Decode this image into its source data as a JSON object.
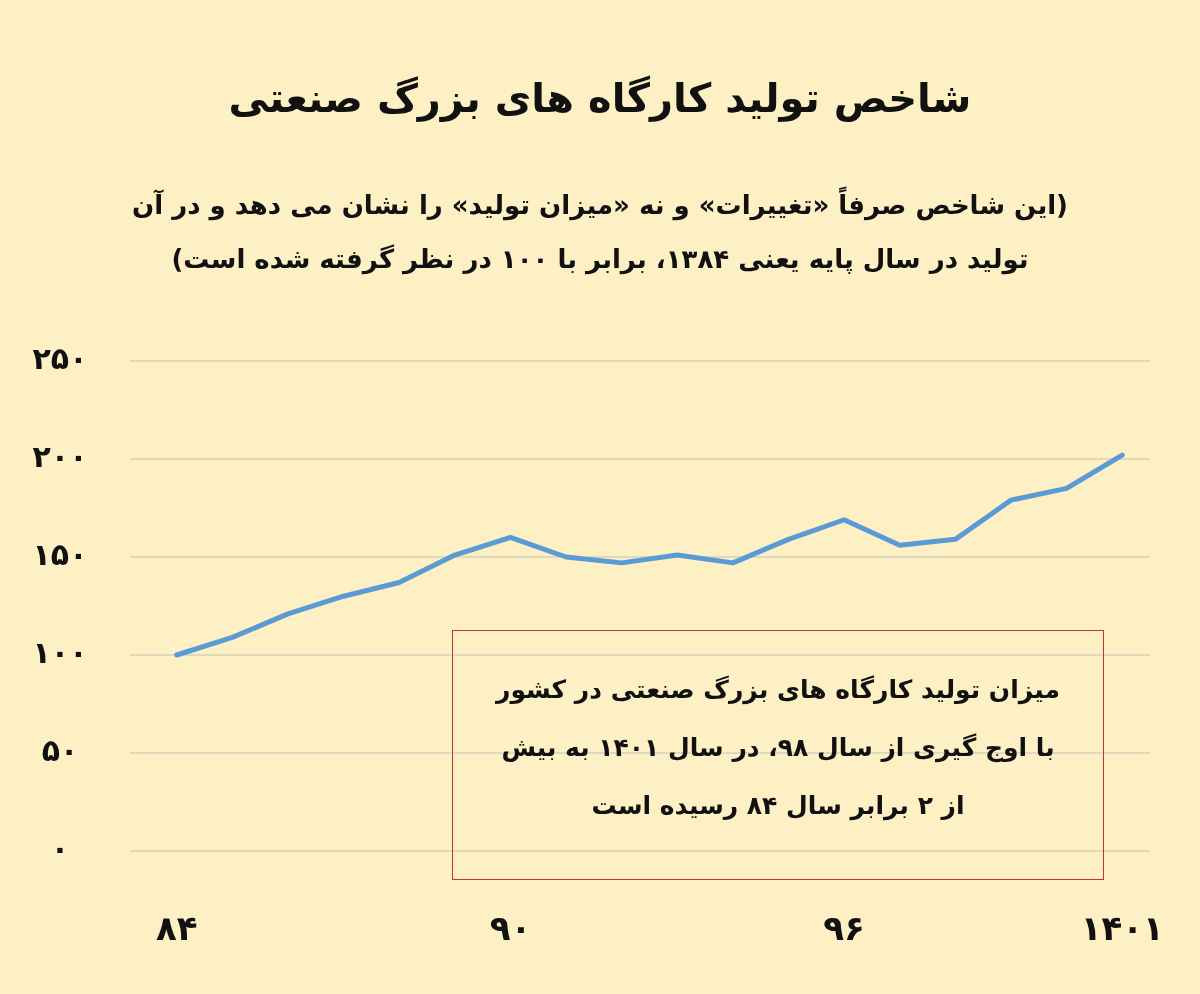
{
  "chart_data": {
    "type": "line",
    "title": "شاخص تولید کارگاه های بزرگ صنعتی",
    "subtitle": "(این شاخص صرفاً «تغییرات» و نه «میزان تولید» را نشان می دهد و در آن تولید در سال پایه یعنی ۱۳۸۴، برابر با ۱۰۰ در نظر گرفته شده است)",
    "categories": [
      "۸۴",
      null,
      null,
      null,
      null,
      null,
      "۹۰",
      null,
      null,
      null,
      null,
      null,
      "۹۶",
      null,
      null,
      null,
      null,
      "۱۴۰۱"
    ],
    "series": [
      {
        "color": "#5b9bd5",
        "values": [
          100,
          109,
          121,
          130,
          137,
          151,
          160,
          150,
          147,
          151,
          147,
          159,
          169,
          156,
          159,
          179,
          185,
          202
        ]
      }
    ],
    "ylim": [
      0,
      250
    ],
    "yticks": [
      {
        "value": 0,
        "label": "۰"
      },
      {
        "value": 50,
        "label": "۵۰"
      },
      {
        "value": 100,
        "label": "۱۰۰"
      },
      {
        "value": 150,
        "label": "۱۵۰"
      },
      {
        "value": 200,
        "label": "۲۰۰"
      },
      {
        "value": 250,
        "label": "۲۵۰"
      }
    ],
    "grid": "y",
    "marker": "none",
    "line_style": "solid",
    "annotations": [
      "میزان تولید کارگاه های بزرگ صنعتی در کشور با اوج گیری از سال ۹۸، در سال ۱۴۰۱ به بیش از ۲ برابر سال ۸۴ رسیده است"
    ]
  }
}
